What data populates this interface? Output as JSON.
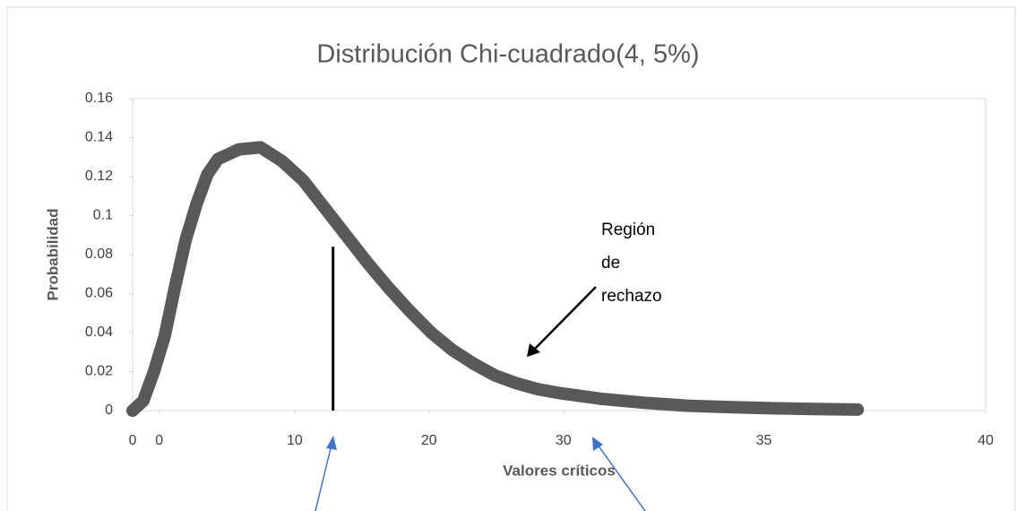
{
  "chart_data": {
    "type": "line",
    "title": "Distribución Chi-cuadrado(4, 5%)",
    "x_label": "Valores críticos",
    "y_label": "Probabilidad",
    "annotation": [
      "Región",
      "de",
      "rechazo"
    ],
    "critical_line": {
      "x": 9.4,
      "y": 0.084
    },
    "series": [
      {
        "name": "Chi-cuadrado",
        "color": "#595959",
        "x": [
          0,
          0.5,
          1,
          1.5,
          2,
          2.5,
          3,
          3.5,
          4,
          5,
          6,
          7,
          8,
          9,
          10,
          11,
          12,
          13,
          14,
          15,
          16,
          17,
          18,
          19,
          20,
          22,
          24,
          26,
          28,
          30,
          32,
          34
        ],
        "values": [
          0,
          0.005,
          0.02,
          0.038,
          0.064,
          0.088,
          0.106,
          0.121,
          0.129,
          0.134,
          0.135,
          0.128,
          0.118,
          0.104,
          0.09,
          0.076,
          0.063,
          0.051,
          0.04,
          0.031,
          0.024,
          0.018,
          0.014,
          0.011,
          0.009,
          0.006,
          0.004,
          0.0025,
          0.0018,
          0.0012,
          0.0008,
          0.0005
        ]
      }
    ],
    "xlim": [
      0,
      40
    ],
    "xticks": [
      {
        "value": 0,
        "label": "0"
      },
      {
        "value": 1.25,
        "label": "0"
      },
      {
        "value": 7.6,
        "label": "10"
      },
      {
        "value": 13.9,
        "label": "20"
      },
      {
        "value": 20.2,
        "label": "30"
      },
      {
        "value": 29.6,
        "label": "35"
      },
      {
        "value": 40,
        "label": "40"
      }
    ],
    "ylim": [
      0,
      0.16
    ],
    "yticks": [
      0,
      0.02,
      0.04,
      0.06,
      0.08,
      0.1,
      0.12,
      0.14,
      0.16
    ],
    "grid": false
  }
}
